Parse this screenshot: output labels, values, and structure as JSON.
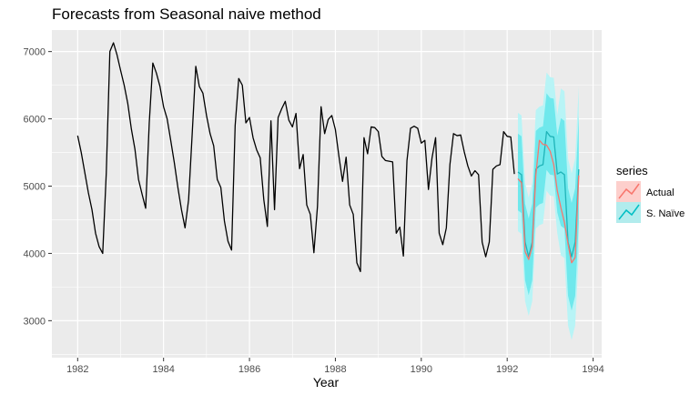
{
  "chart_data": {
    "type": "line",
    "title": "Forecasts from Seasonal naive method",
    "xlabel": "Year",
    "ylabel": "",
    "xlim": [
      1981.4,
      1994.2
    ],
    "ylim": [
      2450,
      7320
    ],
    "x_ticks": [
      1982,
      1984,
      1986,
      1988,
      1990,
      1992,
      1994
    ],
    "x_tick_labels": [
      "1982",
      "1984",
      "1986",
      "1988",
      "1990",
      "1992",
      "1994"
    ],
    "y_ticks": [
      3000,
      4000,
      5000,
      6000,
      7000
    ],
    "y_tick_labels": [
      "3000",
      "4000",
      "5000",
      "6000",
      "7000"
    ],
    "grid": true,
    "legend": {
      "title": "series",
      "position": "right",
      "items": [
        {
          "label": "Actual",
          "color": "#F8766D"
        },
        {
          "label": "S. Naïve",
          "color": "#00BFC4"
        }
      ]
    },
    "history": {
      "start": 1982.0,
      "step": 0.083333,
      "color": "#000000",
      "values": [
        5750,
        5500,
        5200,
        4900,
        4650,
        4300,
        4100,
        4000,
        5200,
        7000,
        7130,
        6950,
        6720,
        6500,
        6230,
        5850,
        5550,
        5100,
        4880,
        4670,
        5940,
        6830,
        6680,
        6480,
        6180,
        6000,
        5680,
        5350,
        4980,
        4650,
        4380,
        4800,
        5780,
        6780,
        6480,
        6380,
        6050,
        5780,
        5600,
        5100,
        4980,
        4480,
        4180,
        4050,
        5900,
        6600,
        6500,
        5940,
        6020,
        5720,
        5540,
        5420,
        4800,
        4400,
        5970,
        4650,
        6020,
        6150,
        6260,
        5980,
        5880,
        6080,
        5260,
        5470,
        4720,
        4580,
        4010,
        4700,
        6180,
        5780,
        5990,
        6050,
        5840,
        5440,
        5070,
        5430,
        4720,
        4580,
        3860,
        3730,
        5720,
        5480,
        5880,
        5870,
        5810,
        5440,
        5380,
        5370,
        5360,
        4300,
        4390,
        3960,
        5380,
        5860,
        5890,
        5860,
        5640,
        5680,
        4950,
        5420,
        5720,
        4300,
        4130,
        4380,
        5320,
        5780,
        5750,
        5760,
        5510,
        5300,
        5150,
        5230,
        5170,
        4170,
        3950,
        4170,
        5250,
        5300,
        5320,
        5810,
        5740,
        5730,
        5180
      ]
    },
    "forecast": {
      "start": 1992.25,
      "step": 0.083333,
      "color": "#00BFC4",
      "values": [
        5210,
        5170,
        4170,
        3950,
        4170,
        5250,
        5300,
        5320,
        5810,
        5740,
        5730,
        5180,
        5210,
        5170,
        4170,
        3950,
        4170,
        5250
      ],
      "upper80": [
        5780,
        5740,
        4740,
        4520,
        4740,
        5820,
        5870,
        5890,
        6380,
        6310,
        6300,
        5750,
        6010,
        5970,
        4970,
        4750,
        4970,
        6050
      ],
      "lower80": [
        4640,
        4600,
        3600,
        3380,
        3600,
        4680,
        4730,
        4750,
        5240,
        5170,
        5160,
        4610,
        4410,
        4370,
        3370,
        3150,
        3370,
        4450
      ],
      "upper95": [
        6090,
        6050,
        5050,
        4830,
        5050,
        6130,
        6180,
        6200,
        6690,
        6620,
        6610,
        6060,
        6450,
        6410,
        5410,
        5190,
        5410,
        6490
      ],
      "lower95": [
        4330,
        4290,
        3290,
        3070,
        3290,
        4370,
        4420,
        4440,
        4930,
        4860,
        4850,
        4300,
        3970,
        3930,
        2930,
        2710,
        2930,
        4010
      ]
    },
    "actual": {
      "start": 1992.25,
      "step": 0.083333,
      "color": "#F8766D",
      "values": [
        5110,
        5050,
        4030,
        3910,
        4100,
        5160,
        5680,
        5620,
        5610,
        5520,
        5320,
        4930,
        4680,
        4460,
        4140,
        3860,
        3940,
        5160
      ]
    }
  }
}
